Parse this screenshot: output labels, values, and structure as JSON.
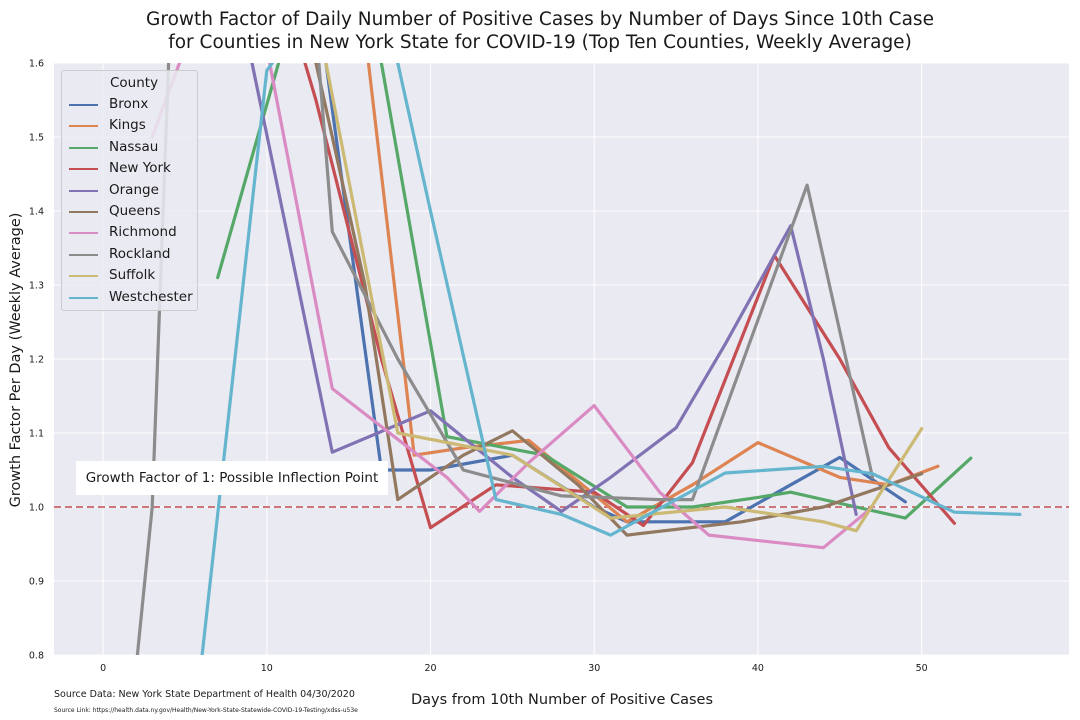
{
  "chart_data": {
    "type": "line",
    "title": "Growth Factor of Daily Number of Positive Cases by Number of Days Since 10th Case\nfor Counties in New York State for COVID-19 (Top Ten Counties, Weekly Average)",
    "title_lines": [
      "Growth Factor of Daily Number of Positive Cases by Number of Days Since 10th Case",
      "for Counties in New York State for COVID-19 (Top Ten Counties, Weekly Average)"
    ],
    "xlabel": "Days from 10th Number of Positive Cases",
    "ylabel": "Growth Factor Per Day (Weekly Average)",
    "xlim": [
      -3,
      59
    ],
    "ylim": [
      0.8,
      1.6
    ],
    "xticks": [
      0,
      10,
      20,
      30,
      40,
      50
    ],
    "yticks": [
      0.8,
      0.9,
      1.0,
      1.1,
      1.2,
      1.3,
      1.4,
      1.5,
      1.6
    ],
    "ytick_labels": [
      "0.8",
      "0.9",
      "1.0",
      "1.1",
      "1.2",
      "1.3",
      "1.4",
      "1.5",
      "1.6"
    ],
    "grid": true,
    "background": "#eaeaf2",
    "legend": {
      "title": "County",
      "position": "top-left"
    },
    "reference_line": {
      "y": 1.0,
      "color": "#c44e52",
      "style": "dashed"
    },
    "annotation": "Growth Factor of 1: Possible Inflection Point",
    "series": [
      {
        "name": "Bronx",
        "color": "#4c72b0",
        "points": [
          [
            13,
            1.7
          ],
          [
            17,
            1.05
          ],
          [
            20,
            1.05
          ],
          [
            25,
            1.07
          ],
          [
            30,
            1.0
          ],
          [
            32,
            0.98
          ],
          [
            38,
            0.98
          ],
          [
            42,
            1.03
          ],
          [
            45,
            1.067
          ],
          [
            49,
            1.007
          ]
        ]
      },
      {
        "name": "Kings",
        "color": "#dd8452",
        "points": [
          [
            14,
            1.72
          ],
          [
            16,
            1.64
          ],
          [
            19,
            1.07
          ],
          [
            22,
            1.08
          ],
          [
            26,
            1.09
          ],
          [
            32,
            0.98
          ],
          [
            36,
            1.03
          ],
          [
            40,
            1.087
          ],
          [
            45,
            1.04
          ],
          [
            48,
            1.03
          ],
          [
            51,
            1.055
          ]
        ]
      },
      {
        "name": "Nassau",
        "color": "#55a868",
        "points": [
          [
            7,
            1.31
          ],
          [
            12,
            1.7
          ],
          [
            15,
            1.67
          ],
          [
            17,
            1.6
          ],
          [
            21,
            1.095
          ],
          [
            27,
            1.07
          ],
          [
            32,
            1.0
          ],
          [
            36,
            1.0
          ],
          [
            40,
            1.013
          ],
          [
            42,
            1.02
          ],
          [
            46,
            1.0
          ],
          [
            49,
            0.985
          ],
          [
            53,
            1.066
          ]
        ]
      },
      {
        "name": "New York",
        "color": "#c44e52",
        "points": [
          [
            11,
            1.7
          ],
          [
            13,
            1.55
          ],
          [
            17,
            1.2
          ],
          [
            20,
            0.972
          ],
          [
            24,
            1.03
          ],
          [
            30,
            1.02
          ],
          [
            33,
            0.975
          ],
          [
            36,
            1.06
          ],
          [
            41,
            1.34
          ],
          [
            45,
            1.2
          ],
          [
            48,
            1.08
          ],
          [
            52,
            0.978
          ]
        ]
      },
      {
        "name": "Orange",
        "color": "#8172b3",
        "points": [
          [
            9,
            1.61
          ],
          [
            14,
            1.074
          ],
          [
            20,
            1.13
          ],
          [
            25,
            1.04
          ],
          [
            28,
            0.994
          ],
          [
            31,
            1.04
          ],
          [
            35,
            1.107
          ],
          [
            38,
            1.22
          ],
          [
            42,
            1.38
          ],
          [
            44,
            1.2
          ],
          [
            46,
            0.99
          ]
        ]
      },
      {
        "name": "Queens",
        "color": "#937860",
        "points": [
          [
            12,
            1.7
          ],
          [
            16,
            1.3
          ],
          [
            18,
            1.01
          ],
          [
            22,
            1.07
          ],
          [
            25,
            1.103
          ],
          [
            29,
            1.03
          ],
          [
            32,
            0.962
          ],
          [
            39,
            0.98
          ],
          [
            44,
            1.0
          ],
          [
            48,
            1.03
          ],
          [
            50,
            1.045
          ]
        ]
      },
      {
        "name": "Richmond",
        "color": "#da8bc3",
        "points": [
          [
            3,
            1.5
          ],
          [
            6,
            1.68
          ],
          [
            10,
            1.62
          ],
          [
            14,
            1.16
          ],
          [
            21,
            1.04
          ],
          [
            23,
            0.994
          ],
          [
            26,
            1.06
          ],
          [
            30,
            1.137
          ],
          [
            34,
            1.02
          ],
          [
            37,
            0.962
          ],
          [
            44,
            0.945
          ],
          [
            47,
            1.0
          ]
        ]
      },
      {
        "name": "Rockland",
        "color": "#8c8c8c",
        "points": [
          [
            2,
            0.78
          ],
          [
            3,
            1.0
          ],
          [
            4,
            1.6
          ],
          [
            5,
            1.65
          ],
          [
            13,
            1.65
          ],
          [
            14,
            1.372
          ],
          [
            18,
            1.2
          ],
          [
            22,
            1.05
          ],
          [
            28,
            1.015
          ],
          [
            34,
            1.01
          ],
          [
            36,
            1.01
          ],
          [
            43,
            1.435
          ],
          [
            47,
            1.04
          ]
        ]
      },
      {
        "name": "Suffolk",
        "color": "#ccb974",
        "points": [
          [
            13,
            1.67
          ],
          [
            18,
            1.1
          ],
          [
            25,
            1.07
          ],
          [
            31,
            0.985
          ],
          [
            38,
            1.0
          ],
          [
            44,
            0.98
          ],
          [
            46,
            0.968
          ],
          [
            50,
            1.106
          ]
        ]
      },
      {
        "name": "Westchester",
        "color": "#64b5cd",
        "points": [
          [
            6,
            0.79
          ],
          [
            10,
            1.59
          ],
          [
            11,
            1.62
          ],
          [
            17,
            1.7
          ],
          [
            20,
            1.4
          ],
          [
            24,
            1.01
          ],
          [
            28,
            0.99
          ],
          [
            31,
            0.962
          ],
          [
            38,
            1.046
          ],
          [
            44,
            1.055
          ],
          [
            47,
            1.045
          ],
          [
            52,
            0.993
          ],
          [
            56,
            0.99
          ]
        ]
      }
    ]
  },
  "source": {
    "data": "Source Data: New York State Department of Health 04/30/2020",
    "link": "Source Link: https://health.data.ny.gov/Health/New-York-State-Statewide-COVID-19-Testing/xdss-u53e"
  }
}
